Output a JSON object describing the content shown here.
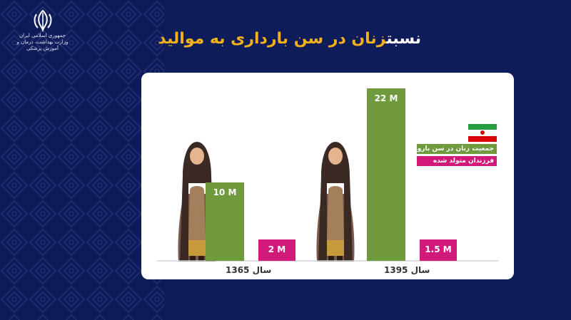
{
  "header": {
    "title_white": "نسبت",
    "title_yellow": "زنان در سن بارداری به موالید",
    "logo_line1": "جمهوری اسلامی ایران",
    "logo_line2": "وزارت بهداشت، درمان و آموزش پزشکی"
  },
  "colors": {
    "background": "#0f1c5a",
    "women": "#6f9a3d",
    "births": "#d11a7a",
    "title_accent": "#f3b21a"
  },
  "legend": {
    "women_label": "جمعیت زنان در سن باروری",
    "births_label": "فرزندان متولد شده"
  },
  "chart_data": {
    "type": "bar",
    "categories": [
      "سال 1365",
      "سال 1395"
    ],
    "series": [
      {
        "name": "جمعیت زنان در سن باروری",
        "values": [
          10,
          22
        ],
        "labels": [
          "10 M",
          "22 M"
        ]
      },
      {
        "name": "فرزندان متولد شده",
        "values": [
          2,
          1.5
        ],
        "labels": [
          "2 M",
          "1.5 M"
        ]
      }
    ],
    "title": "نسبت زنان در سن بارداری به موالید",
    "ylim": [
      0,
      22
    ],
    "legend_position": "right"
  }
}
